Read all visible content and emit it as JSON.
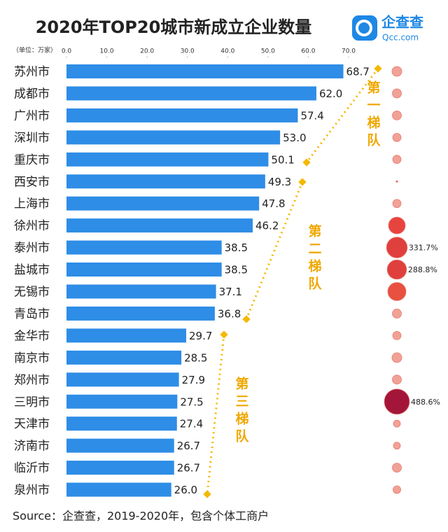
{
  "logo": {
    "name": "企查查",
    "domain": "Qcc.com"
  },
  "chart_data": {
    "type": "bar",
    "title": "2020年TOP20城市新成立企业数量",
    "unit": "（单位：万家）",
    "categories": [
      "苏州市",
      "成都市",
      "广州市",
      "深圳市",
      "重庆市",
      "西安市",
      "上海市",
      "徐州市",
      "泰州市",
      "盐城市",
      "无锡市",
      "青岛市",
      "金华市",
      "南京市",
      "郑州市",
      "三明市",
      "天津市",
      "济南市",
      "临沂市",
      "泉州市"
    ],
    "values": [
      68.7,
      62.0,
      57.4,
      53.0,
      50.1,
      49.3,
      47.8,
      46.2,
      38.5,
      38.5,
      37.1,
      36.8,
      29.7,
      28.5,
      27.9,
      27.5,
      27.4,
      26.7,
      26.7,
      26.0
    ],
    "value_labels": [
      "68.7",
      "62.0",
      "57.4",
      "53.0",
      "50.1",
      "49.3",
      "47.8",
      "46.2",
      "38.5",
      "38.5",
      "37.1",
      "36.8",
      "29.7",
      "28.5",
      "27.9",
      "27.5",
      "27.4",
      "26.7",
      "26.7",
      "26.0"
    ],
    "color": "#2e8de6",
    "xlim": [
      0,
      70
    ],
    "xticks": [
      {
        "value": 0,
        "label": "0.0"
      },
      {
        "value": 10,
        "label": "10.0"
      },
      {
        "value": 20,
        "label": "20.0"
      },
      {
        "value": 30,
        "label": "30.0"
      },
      {
        "value": 40,
        "label": "40.0"
      },
      {
        "value": 50,
        "label": "50.0"
      },
      {
        "value": 60,
        "label": "60.0"
      },
      {
        "value": 70,
        "label": "70.0"
      }
    ],
    "growth": {
      "values": [
        74,
        64,
        64,
        54,
        54,
        2,
        54,
        217,
        331.7,
        288.8,
        255,
        64,
        54,
        74,
        64,
        488.6,
        38,
        38,
        64,
        46
      ],
      "value_labels": [
        null,
        null,
        null,
        null,
        null,
        null,
        null,
        null,
        "331.7%",
        "288.8%",
        null,
        null,
        null,
        null,
        null,
        "488.6%",
        null,
        null,
        null,
        null
      ],
      "colors": [
        "#f2a196",
        "#f2a196",
        "#f2a196",
        "#f2a196",
        "#f2a196",
        "#e8443f",
        "#f2a196",
        "#e8443f",
        "#e0403d",
        "#e0403d",
        "#e8503f",
        "#f2a196",
        "#f2a196",
        "#f2a196",
        "#f2a196",
        "#a3163a",
        "#f2a196",
        "#f2a196",
        "#f2a196",
        "#f2a196"
      ]
    },
    "annotations": [
      "第一梯队",
      "第二梯队",
      "第三梯队"
    ],
    "source": "Source：企查查，2019-2020年，包含个体工商户"
  }
}
